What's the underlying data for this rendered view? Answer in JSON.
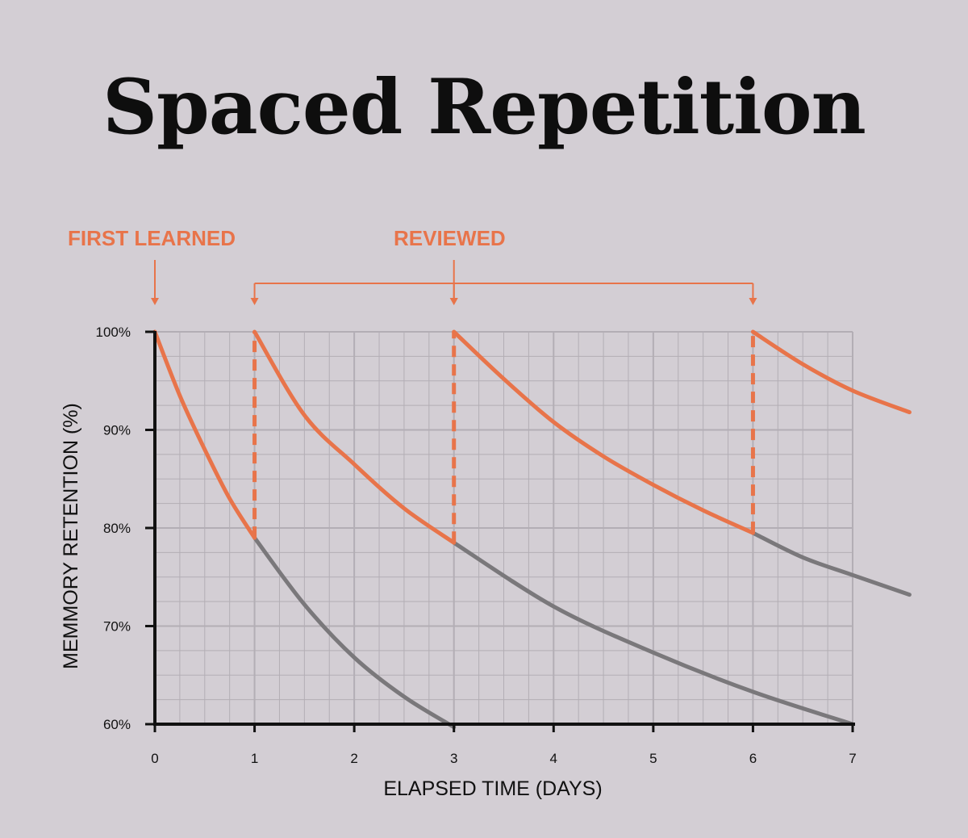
{
  "title": "Spaced Repetition",
  "annotations": {
    "first_learned": "FIRST LEARNED",
    "reviewed": "REVIEWED"
  },
  "colors": {
    "background": "#d3ced4",
    "retained": "#e8744a",
    "forgetting": "#7a787b",
    "axis": "#111111",
    "grid": "#b3aeb5"
  },
  "chart_data": {
    "type": "line",
    "title": "Spaced Repetition",
    "xlabel": "ELAPSED TIME (DAYS)",
    "ylabel": "MEMMORY RETENTION (%)",
    "xlim": [
      0,
      7
    ],
    "ylim": [
      60,
      100
    ],
    "x_ticks": [
      "0",
      "1",
      "2",
      "3",
      "4",
      "5",
      "6",
      "7"
    ],
    "y_ticks": [
      "60%",
      "70%",
      "80%",
      "90%",
      "100%"
    ],
    "grid": true,
    "review_days": [
      1,
      3,
      6
    ],
    "first_learned_day": 0,
    "series": [
      {
        "role": "retained",
        "points": [
          [
            0,
            100
          ],
          [
            0.25,
            93.5
          ],
          [
            0.5,
            88
          ],
          [
            0.75,
            83
          ],
          [
            1,
            79
          ]
        ]
      },
      {
        "role": "retained",
        "points": [
          [
            1,
            100
          ],
          [
            1.5,
            91.5
          ],
          [
            2,
            86.5
          ],
          [
            2.5,
            82
          ],
          [
            3,
            78.5
          ]
        ]
      },
      {
        "role": "retained",
        "points": [
          [
            3,
            100
          ],
          [
            3.5,
            95.2
          ],
          [
            4,
            90.8
          ],
          [
            4.5,
            87.3
          ],
          [
            5,
            84.4
          ],
          [
            5.5,
            81.8
          ],
          [
            6,
            79.5
          ]
        ]
      },
      {
        "role": "retained",
        "points": [
          [
            6,
            100
          ],
          [
            6.5,
            96.7
          ],
          [
            7,
            94
          ],
          [
            7.57,
            91.8
          ]
        ]
      },
      {
        "role": "forgetting",
        "points": [
          [
            1,
            79
          ],
          [
            1.5,
            72.2
          ],
          [
            2,
            66.8
          ],
          [
            2.5,
            62.8
          ],
          [
            3,
            59.7
          ]
        ]
      },
      {
        "role": "forgetting",
        "points": [
          [
            3,
            78.5
          ],
          [
            4,
            72
          ],
          [
            5,
            67.3
          ],
          [
            6,
            63.3
          ],
          [
            7,
            60
          ]
        ]
      },
      {
        "role": "forgetting",
        "points": [
          [
            6,
            79.5
          ],
          [
            6.5,
            77
          ],
          [
            7,
            75.2
          ],
          [
            7.57,
            73.2
          ]
        ]
      },
      {
        "role": "review-jump",
        "points": [
          [
            1,
            79
          ],
          [
            1,
            100
          ]
        ]
      },
      {
        "role": "review-jump",
        "points": [
          [
            3,
            78.5
          ],
          [
            3,
            100
          ]
        ]
      },
      {
        "role": "review-jump",
        "points": [
          [
            6,
            79.5
          ],
          [
            6,
            100
          ]
        ]
      }
    ]
  }
}
